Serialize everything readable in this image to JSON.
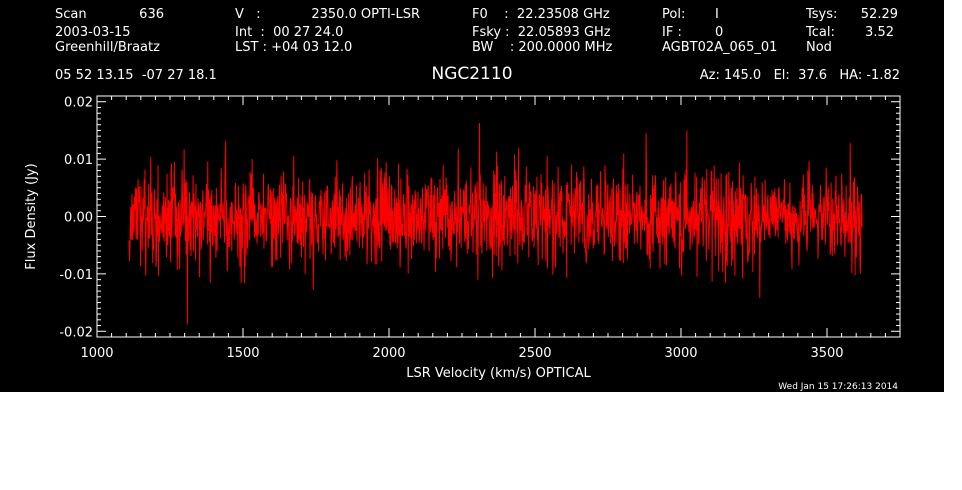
{
  "header": {
    "col1": [
      "Scan",
      "2003-03-15",
      "Greenhill/Braatz"
    ],
    "scan_number": "636",
    "col2": [
      "V   :",
      "Int  :  00 27 24.0",
      "LST : +04 03 12.0"
    ],
    "velocity_value": "2350.0 OPTI-LSR",
    "col3": [
      "F0    :  22.23508 GHz",
      "Fsky :  22.05893 GHz",
      "BW    : 200.0000 MHz"
    ],
    "col4_labels": [
      "Pol:",
      "IF :",
      "AGBT02A_065_01"
    ],
    "col4_values": [
      "I",
      "0",
      ""
    ],
    "col5_labels": [
      "Tsys:",
      "Tcal:",
      "Nod"
    ],
    "col5_values": [
      "52.29",
      "3.52",
      ""
    ],
    "coords": "05 52 13.15  -07 27 18.1",
    "source": "NGC2110",
    "pointing": "Az: 145.0   El:  37.6   HA: -1.82",
    "timestamp": "Wed Jan 15 17:26:13 2014"
  },
  "chart_data": {
    "type": "line",
    "xlabel": "LSR Velocity (km/s) OPTICAL",
    "ylabel": "Flux Density (Jy)",
    "xlim": [
      1000,
      3750
    ],
    "ylim": [
      -0.021,
      0.021
    ],
    "xticks": [
      1000,
      1500,
      2000,
      2500,
      3000,
      3500
    ],
    "xtick_labels": [
      "1000",
      "1500",
      "2000",
      "2500",
      "3000",
      "3500"
    ],
    "yticks": [
      -0.02,
      -0.01,
      0.0,
      0.01,
      0.02
    ],
    "ytick_labels": [
      "-0.02",
      "-0.01",
      "0.00",
      "0.01",
      "0.02"
    ],
    "series": [
      {
        "color": "#ff0000",
        "x_start": 1110,
        "x_end": 3620,
        "n_points": 1800,
        "noise_rms": 0.0042,
        "notable_points": [
          {
            "x": 1310,
            "y": -0.0188
          },
          {
            "x": 2310,
            "y": 0.0163
          },
          {
            "x": 2880,
            "y": 0.0145
          },
          {
            "x": 3020,
            "y": 0.015
          },
          {
            "x": 1440,
            "y": 0.0132
          },
          {
            "x": 3580,
            "y": 0.0128
          },
          {
            "x": 3270,
            "y": -0.0142
          },
          {
            "x": 1740,
            "y": -0.0128
          }
        ]
      }
    ]
  },
  "colors": {
    "background": "#000000",
    "foreground": "#ffffff",
    "spectrum": "#ff0000"
  }
}
